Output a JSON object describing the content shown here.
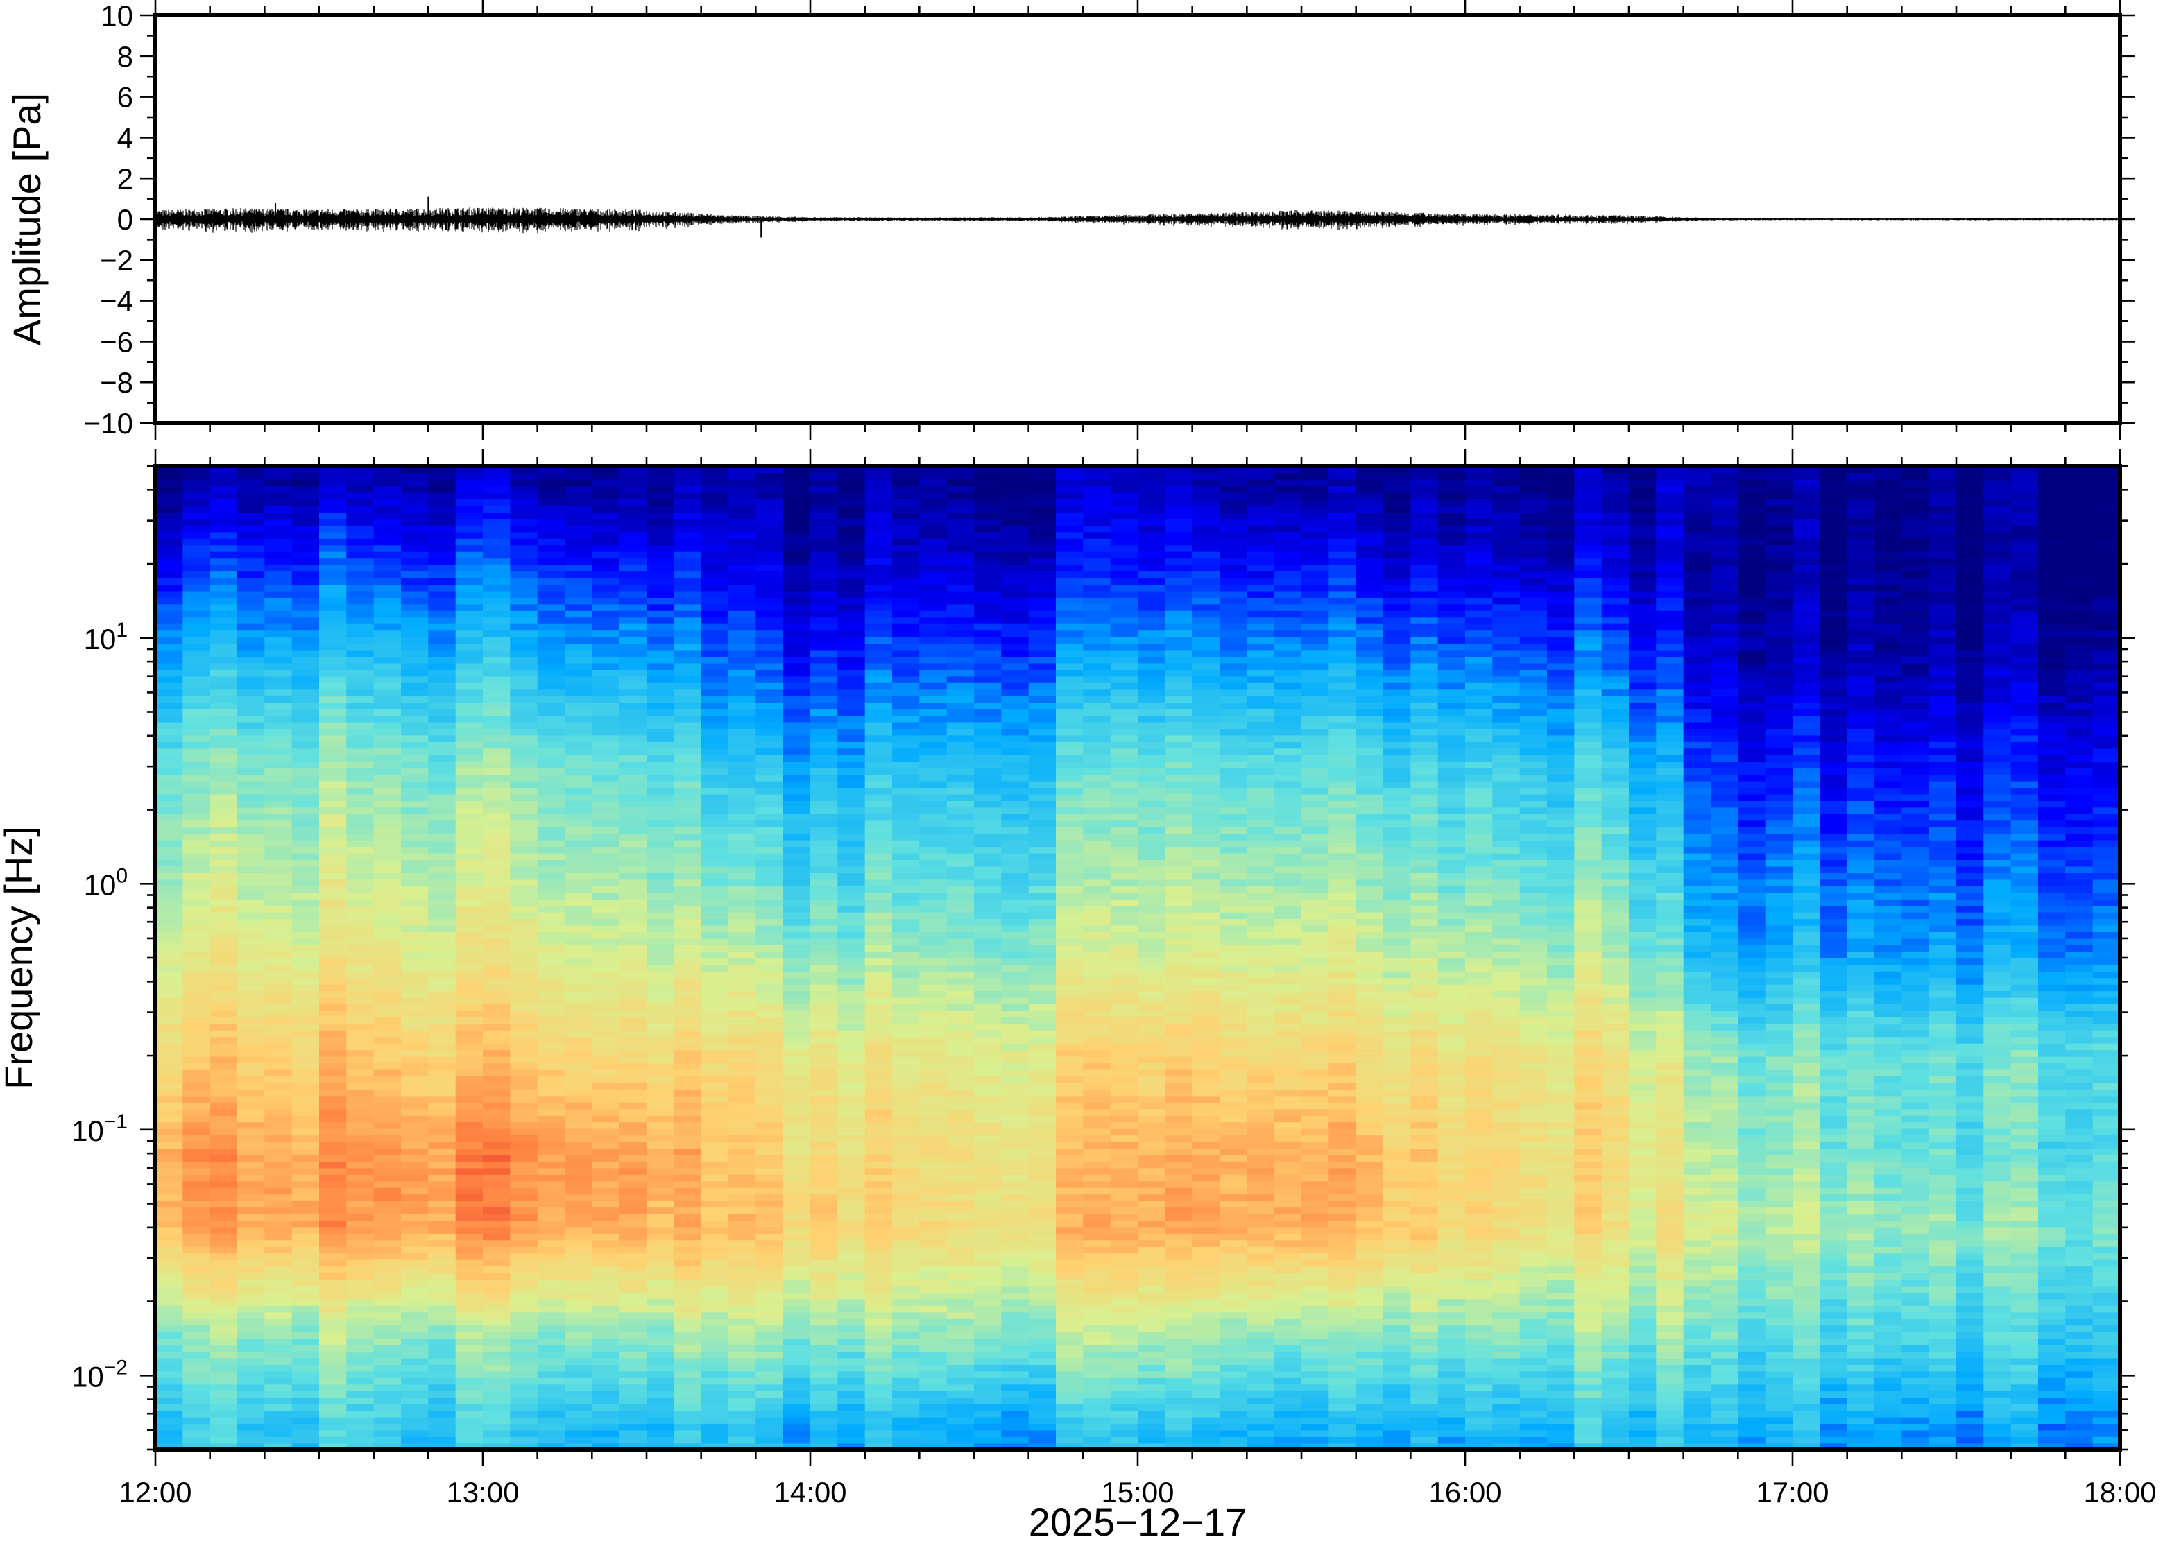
{
  "chart_data": [
    {
      "type": "line",
      "panel": "waveform",
      "ylabel": "Amplitude [Pa]",
      "ylim": [
        -10,
        10
      ],
      "yticks": [
        10,
        8,
        6,
        4,
        2,
        0,
        -2,
        -4,
        -6,
        -8,
        -10
      ],
      "ytick_labels": [
        "10",
        "8",
        "6",
        "4",
        "2",
        "0",
        "−2",
        "−4",
        "−6",
        "−8",
        "−10"
      ],
      "x_start": "12:00",
      "x_end": "18:00",
      "line_color": "#000000",
      "envelope": {
        "x": [
          "12:00",
          "12:15",
          "12:30",
          "12:45",
          "13:00",
          "13:15",
          "13:30",
          "13:45",
          "14:00",
          "14:15",
          "14:30",
          "14:45",
          "15:00",
          "15:15",
          "15:30",
          "15:45",
          "16:00",
          "16:15",
          "16:30",
          "16:45",
          "17:00",
          "17:15",
          "17:30",
          "17:45",
          "18:00"
        ],
        "amplitude_pa": [
          0.35,
          0.42,
          0.38,
          0.4,
          0.45,
          0.42,
          0.35,
          0.15,
          0.08,
          0.07,
          0.07,
          0.09,
          0.18,
          0.25,
          0.35,
          0.3,
          0.2,
          0.18,
          0.15,
          0.05,
          0.04,
          0.04,
          0.04,
          0.04,
          0.04
        ]
      },
      "spikes": [
        {
          "x": "12:22",
          "amplitude_pa": 0.8
        },
        {
          "x": "12:50",
          "amplitude_pa": 1.1
        },
        {
          "x": "13:51",
          "amplitude_pa": -0.9
        }
      ]
    },
    {
      "type": "heatmap",
      "panel": "spectrogram",
      "ylabel": "Frequency [Hz]",
      "yscale": "log",
      "ylim": [
        0.005,
        50
      ],
      "yticks": [
        0.01,
        0.1,
        1,
        10
      ],
      "ytick_labels": [
        {
          "base": "10",
          "exp": "−2"
        },
        {
          "base": "10",
          "exp": "−1"
        },
        {
          "base": "10",
          "exp": "0"
        },
        {
          "base": "10",
          "exp": "1"
        }
      ],
      "colormap": "jet",
      "colormap_stops": [
        "#000080",
        "#0000ff",
        "#00aaff",
        "#60e0e0",
        "#d8f090",
        "#ffd070",
        "#ff8040",
        "#e02020"
      ],
      "description_grid": {
        "time_bins_start": [
          "12:00",
          "12:30",
          "13:00",
          "13:30",
          "13:45",
          "14:00",
          "14:30",
          "15:00",
          "15:30",
          "16:00",
          "16:30",
          "16:45",
          "17:00",
          "17:30",
          "18:00"
        ],
        "freq_bins_hz": [
          0.006,
          0.015,
          0.04,
          0.08,
          0.2,
          0.5,
          1,
          3,
          8,
          20,
          45
        ],
        "note": "relative power 0..1, rows = freq bins, cols = time bins"
      },
      "power": [
        [
          0.38,
          0.37,
          0.36,
          0.35,
          0.33,
          0.32,
          0.3,
          0.33,
          0.32,
          0.33,
          0.35,
          0.32,
          0.3,
          0.26,
          0.3
        ],
        [
          0.5,
          0.5,
          0.5,
          0.52,
          0.5,
          0.5,
          0.5,
          0.52,
          0.5,
          0.5,
          0.48,
          0.45,
          0.42,
          0.4,
          0.4
        ],
        [
          0.8,
          0.8,
          0.82,
          0.8,
          0.72,
          0.72,
          0.66,
          0.76,
          0.8,
          0.7,
          0.64,
          0.58,
          0.52,
          0.48,
          0.5
        ],
        [
          0.82,
          0.8,
          0.84,
          0.82,
          0.7,
          0.68,
          0.66,
          0.74,
          0.8,
          0.7,
          0.66,
          0.52,
          0.48,
          0.42,
          0.45
        ],
        [
          0.72,
          0.72,
          0.72,
          0.7,
          0.66,
          0.64,
          0.62,
          0.68,
          0.7,
          0.66,
          0.64,
          0.48,
          0.46,
          0.44,
          0.46
        ],
        [
          0.62,
          0.62,
          0.62,
          0.6,
          0.52,
          0.5,
          0.5,
          0.56,
          0.6,
          0.56,
          0.52,
          0.3,
          0.3,
          0.28,
          0.3
        ],
        [
          0.56,
          0.56,
          0.56,
          0.54,
          0.44,
          0.42,
          0.44,
          0.5,
          0.54,
          0.48,
          0.46,
          0.26,
          0.26,
          0.22,
          0.26
        ],
        [
          0.48,
          0.48,
          0.48,
          0.46,
          0.34,
          0.32,
          0.36,
          0.42,
          0.44,
          0.4,
          0.36,
          0.18,
          0.16,
          0.14,
          0.18
        ],
        [
          0.34,
          0.34,
          0.34,
          0.32,
          0.2,
          0.18,
          0.22,
          0.28,
          0.3,
          0.26,
          0.22,
          0.08,
          0.06,
          0.05,
          0.08
        ],
        [
          0.18,
          0.2,
          0.2,
          0.18,
          0.1,
          0.08,
          0.1,
          0.14,
          0.16,
          0.12,
          0.1,
          0.03,
          0.02,
          0.02,
          0.02
        ],
        [
          0.04,
          0.05,
          0.06,
          0.05,
          0.03,
          0.03,
          0.03,
          0.05,
          0.05,
          0.04,
          0.03,
          0.06,
          0.01,
          0.01,
          0.01
        ]
      ]
    }
  ],
  "xaxis": {
    "ticks": [
      "12:00",
      "13:00",
      "14:00",
      "15:00",
      "16:00",
      "17:00",
      "18:00"
    ],
    "date_label": "2025−12−17"
  }
}
